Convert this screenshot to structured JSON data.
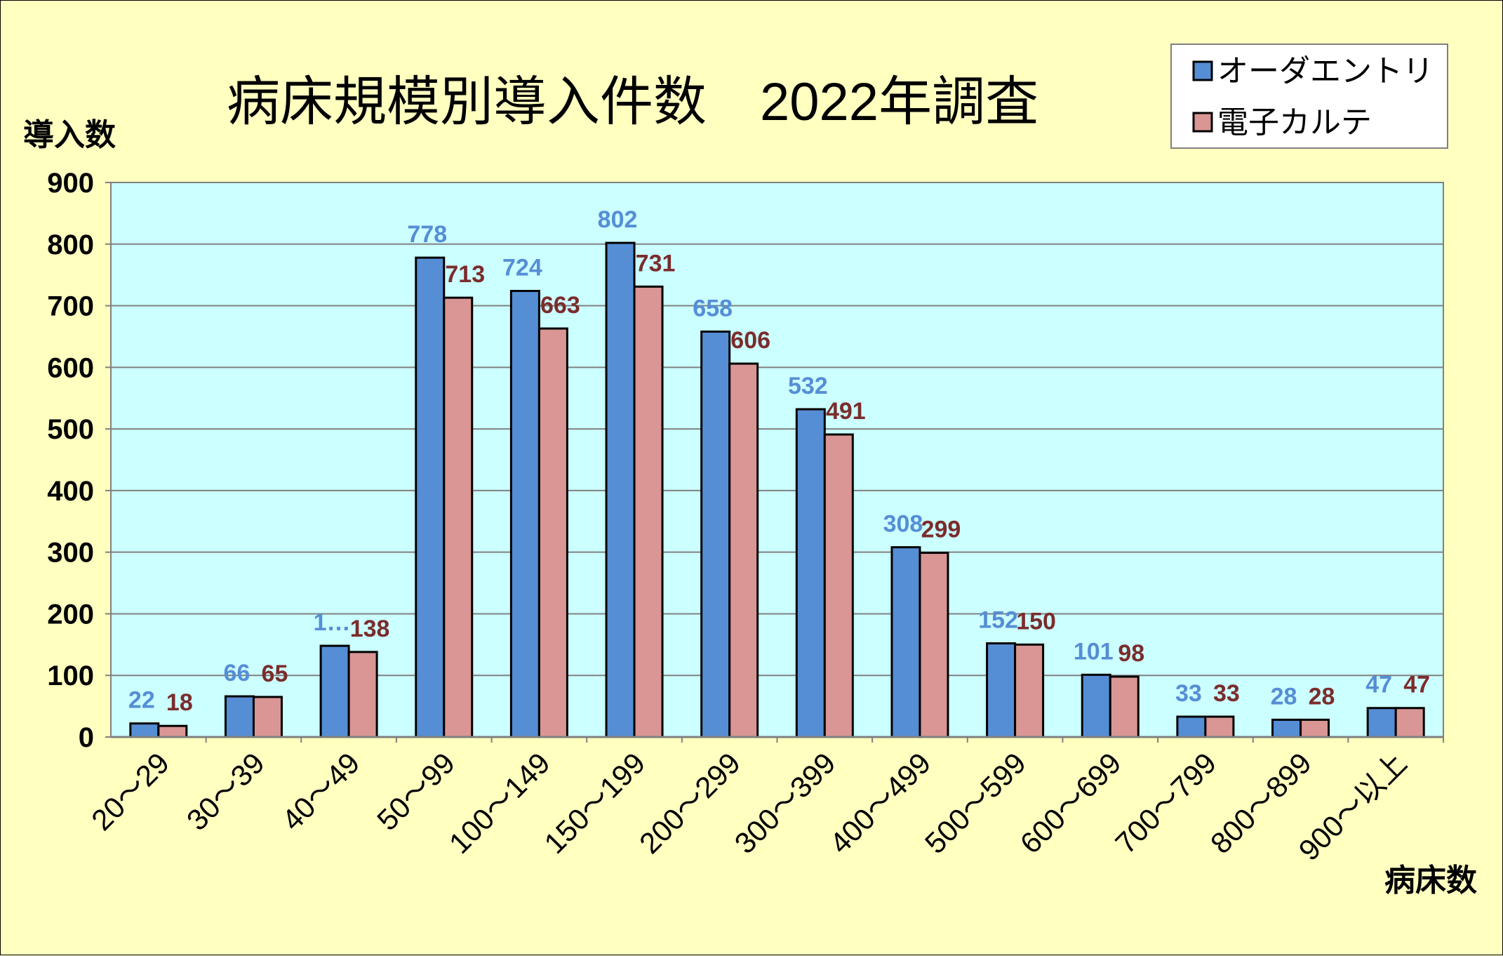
{
  "chart_data": {
    "type": "bar",
    "title": "病床規模別導入件数　2022年調査",
    "ylabel": "導入数",
    "xlabel": "病床数",
    "categories": [
      "20～29",
      "30～39",
      "40～49",
      "50～99",
      "100～149",
      "150～199",
      "200～299",
      "300～399",
      "400～499",
      "500～599",
      "600～699",
      "700～799",
      "800～899",
      "900～以上"
    ],
    "series": [
      {
        "name": "オーダエントリ",
        "color": "#558ed5",
        "values": [
          22,
          66,
          148,
          778,
          724,
          802,
          658,
          532,
          308,
          152,
          101,
          33,
          28,
          47
        ],
        "labels": [
          "22",
          "66",
          "1…",
          "778",
          "724",
          "802",
          "658",
          "532",
          "308",
          "152",
          "101",
          "33",
          "28",
          "47"
        ]
      },
      {
        "name": "電子カルテ",
        "color": "#d99694",
        "values": [
          18,
          65,
          138,
          713,
          663,
          731,
          606,
          491,
          299,
          150,
          98,
          33,
          28,
          47
        ],
        "labels": [
          "18",
          "65",
          "138",
          "713",
          "663",
          "731",
          "606",
          "491",
          "299",
          "150",
          "98",
          "33",
          "28",
          "47"
        ]
      }
    ],
    "ylim": [
      0,
      900
    ],
    "yticks": [
      0,
      100,
      200,
      300,
      400,
      500,
      600,
      700,
      800,
      900
    ],
    "grid": true,
    "plot_background": "#ccffff",
    "page_background": "#ffffc0",
    "legend_position": "top-right"
  }
}
